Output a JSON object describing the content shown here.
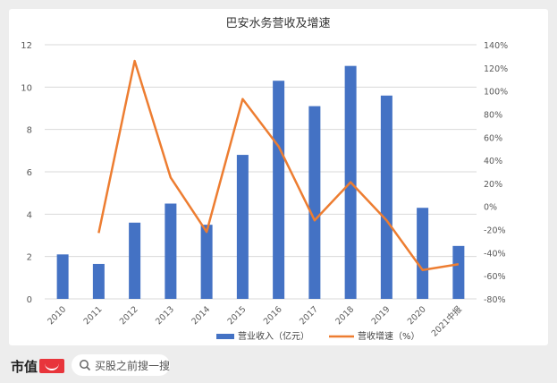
{
  "chart_data": {
    "type": "bar+line",
    "title": "巴安水务营收及增速",
    "categories": [
      "2010",
      "2011",
      "2012",
      "2013",
      "2014",
      "2015",
      "2016",
      "2017",
      "2018",
      "2019",
      "2020",
      "2021中报"
    ],
    "series": [
      {
        "name": "营业收入（亿元）",
        "type": "bar",
        "axis": "left",
        "values": [
          2.1,
          1.65,
          3.6,
          4.5,
          3.5,
          6.8,
          10.3,
          9.1,
          11.0,
          9.6,
          4.3,
          2.5
        ]
      },
      {
        "name": "营收增速（%）",
        "type": "line",
        "axis": "right",
        "values": [
          null,
          -23,
          126,
          25,
          -22,
          93,
          52,
          -12,
          21,
          -12,
          -55,
          -50
        ]
      }
    ],
    "y_left": {
      "min": 0,
      "max": 12,
      "ticks": [
        "0",
        "2",
        "4",
        "6",
        "8",
        "10",
        "12"
      ]
    },
    "y_right": {
      "min": -80,
      "max": 140,
      "ticks": [
        "-80%",
        "-60%",
        "-40%",
        "-20%",
        "0%",
        "20%",
        "40%",
        "60%",
        "80%",
        "100%",
        "120%",
        "140%"
      ]
    },
    "legend_position": "bottom",
    "colors": {
      "bar": "#4472c4",
      "line": "#ed7d31",
      "grid": "#d9d9d9"
    }
  },
  "footer": {
    "brand": "市值",
    "search_text": "买股之前搜一搜"
  }
}
